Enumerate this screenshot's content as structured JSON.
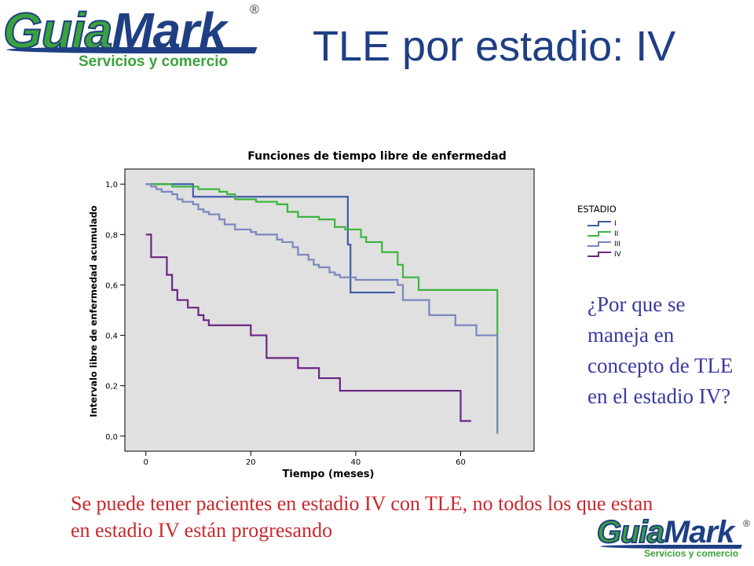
{
  "logo": {
    "name_part1": "Guia",
    "name_part2": "Mark",
    "registered": "®",
    "tagline": "Servicios y comercio",
    "colors": {
      "green": "#3aa23a",
      "blue": "#1f3f84"
    }
  },
  "slide": {
    "title": "TLE por estadio: IV",
    "side_question": "¿Por que se maneja en concepto de TLE en el estadio IV?",
    "bottom_note": "Se puede tener pacientes en estadio IV con TLE, no todos los que estan en estadio IV están progresando"
  },
  "chart_data": {
    "type": "line",
    "step": true,
    "title": "Funciones de tiempo libre de enfermedad",
    "xlabel": "Tiempo (meses)",
    "ylabel": "Intervalo libre de enfermedad acumulado",
    "xlim": [
      -4,
      74
    ],
    "ylim": [
      -0.06,
      1.06
    ],
    "xticks": [
      0,
      20,
      40,
      60
    ],
    "xtick_labels": [
      "0",
      "20",
      "40",
      "60"
    ],
    "yticks": [
      0.0,
      0.2,
      0.4,
      0.6,
      0.8,
      1.0
    ],
    "ytick_labels": [
      "0,0",
      "0,2",
      "0,4",
      "0,6",
      "0,8",
      "1,0"
    ],
    "grid": false,
    "plot_background": "#e0e0e0",
    "legend_title": "ESTADIO",
    "legend_position": "right",
    "series": [
      {
        "name": "I",
        "color": "#3e5ea8",
        "x": [
          0,
          9,
          38,
          38.5,
          39,
          47.5
        ],
        "y": [
          1.0,
          0.95,
          0.95,
          0.76,
          0.57,
          0.57
        ]
      },
      {
        "name": "II",
        "color": "#3cb53c",
        "x": [
          0,
          5,
          10,
          14,
          15.5,
          17,
          21,
          25,
          27,
          29,
          33,
          36,
          38,
          41,
          42,
          45,
          48,
          49,
          52,
          67,
          67
        ],
        "y": [
          1.0,
          0.99,
          0.98,
          0.97,
          0.96,
          0.94,
          0.93,
          0.92,
          0.89,
          0.87,
          0.86,
          0.83,
          0.82,
          0.79,
          0.77,
          0.73,
          0.68,
          0.63,
          0.58,
          0.58,
          0.01
        ]
      },
      {
        "name": "III",
        "color": "#7b86bd",
        "x": [
          0,
          1,
          2,
          3,
          5,
          6,
          7,
          9,
          10,
          11,
          12,
          14,
          15,
          17,
          20,
          21,
          25,
          26,
          28,
          29,
          31,
          32,
          33,
          35,
          36,
          37,
          40,
          48,
          49,
          54,
          59,
          63,
          67
        ],
        "y": [
          1.0,
          0.99,
          0.98,
          0.97,
          0.96,
          0.94,
          0.93,
          0.92,
          0.9,
          0.89,
          0.88,
          0.86,
          0.84,
          0.82,
          0.81,
          0.8,
          0.78,
          0.77,
          0.75,
          0.72,
          0.7,
          0.68,
          0.67,
          0.65,
          0.64,
          0.63,
          0.62,
          0.6,
          0.54,
          0.48,
          0.44,
          0.4,
          0.01
        ]
      },
      {
        "name": "IV",
        "color": "#6a2683",
        "x": [
          0,
          1,
          3,
          4,
          5,
          6,
          8,
          10,
          11,
          12,
          20,
          23,
          29,
          33,
          37,
          60,
          62
        ],
        "y": [
          0.8,
          0.71,
          0.71,
          0.64,
          0.58,
          0.54,
          0.51,
          0.48,
          0.46,
          0.44,
          0.4,
          0.31,
          0.27,
          0.23,
          0.18,
          0.06,
          0.06
        ]
      }
    ]
  }
}
